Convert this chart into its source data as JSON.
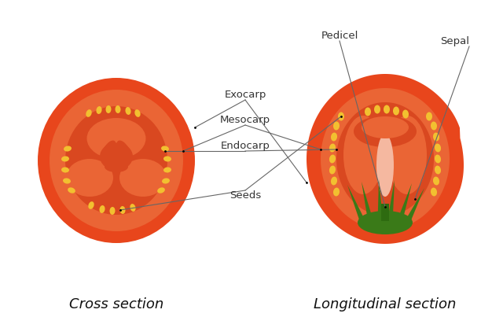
{
  "background_color": "#ffffff",
  "title_cross": "Cross section",
  "title_long": "Longitudinal section",
  "title_fontsize": 13,
  "label_fontsize": 9.5,
  "colors": {
    "tomato_outer": "#E8461C",
    "tomato_flesh": "#EA6535",
    "tomato_locule_bg": "#D94820",
    "tomato_inner_wall": "#C84018",
    "seed": "#F2C030",
    "stem_dark": "#2E6B10",
    "stem_mid": "#3A7A18",
    "stem_light": "#4A8A25",
    "pith": "#F5B8A0",
    "label_color": "#333333",
    "line_color": "#666666"
  },
  "labels": {
    "exocarp": "Exocarp",
    "mesocarp": "Mesocarp",
    "endocarp": "Endocarp",
    "seeds": "Seeds",
    "pedicel": "Pedicel",
    "sepal": "Sepal"
  }
}
